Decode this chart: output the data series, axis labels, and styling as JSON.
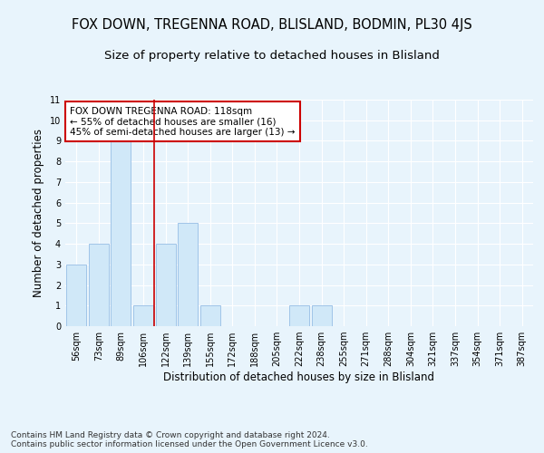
{
  "title": "FOX DOWN, TREGENNA ROAD, BLISLAND, BODMIN, PL30 4JS",
  "subtitle": "Size of property relative to detached houses in Blisland",
  "xlabel": "Distribution of detached houses by size in Blisland",
  "ylabel": "Number of detached properties",
  "categories": [
    "56sqm",
    "73sqm",
    "89sqm",
    "106sqm",
    "122sqm",
    "139sqm",
    "155sqm",
    "172sqm",
    "188sqm",
    "205sqm",
    "222sqm",
    "238sqm",
    "255sqm",
    "271sqm",
    "288sqm",
    "304sqm",
    "321sqm",
    "337sqm",
    "354sqm",
    "371sqm",
    "387sqm"
  ],
  "bar_values": [
    3,
    4,
    9,
    1,
    4,
    5,
    1,
    0,
    0,
    0,
    1,
    1,
    0,
    0,
    0,
    0,
    0,
    0,
    0,
    0,
    0
  ],
  "bar_color": "#d0e8f8",
  "bar_edge_color": "#a0c4e8",
  "vline_x": 3.5,
  "vline_color": "#cc0000",
  "ylim": [
    0,
    11
  ],
  "yticks": [
    0,
    1,
    2,
    3,
    4,
    5,
    6,
    7,
    8,
    9,
    10,
    11
  ],
  "annotation_title": "FOX DOWN TREGENNA ROAD: 118sqm",
  "annotation_line1": "← 55% of detached houses are smaller (16)",
  "annotation_line2": "45% of semi-detached houses are larger (13) →",
  "annotation_box_color": "#ffffff",
  "annotation_box_edge": "#cc0000",
  "footer_line1": "Contains HM Land Registry data © Crown copyright and database right 2024.",
  "footer_line2": "Contains public sector information licensed under the Open Government Licence v3.0.",
  "background_color": "#e8f4fc",
  "plot_bg_color": "#e8f4fc",
  "grid_color": "#ffffff",
  "title_fontsize": 10.5,
  "subtitle_fontsize": 9.5,
  "tick_fontsize": 7,
  "ylabel_fontsize": 8.5,
  "xlabel_fontsize": 8.5,
  "footer_fontsize": 6.5
}
